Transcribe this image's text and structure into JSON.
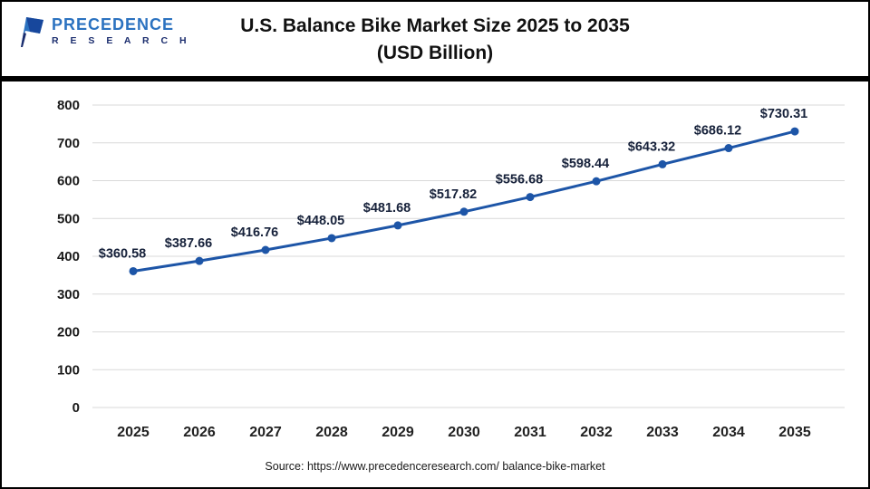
{
  "header": {
    "brand_line1": "PRECEDENCE",
    "brand_line2": "R E S E A R C H",
    "title_line1": "U.S. Balance Bike Market Size 2025 to 2035",
    "title_line2": "(USD Billion)"
  },
  "chart_data": {
    "type": "line",
    "title": "U.S. Balance Bike Market Size 2025 to 2035 (USD Billion)",
    "categories": [
      "2025",
      "2026",
      "2027",
      "2028",
      "2029",
      "2030",
      "2031",
      "2032",
      "2033",
      "2034",
      "2035"
    ],
    "values": [
      360.58,
      387.66,
      416.76,
      448.05,
      481.68,
      517.82,
      556.68,
      598.44,
      643.32,
      686.12,
      730.31
    ],
    "point_labels": [
      "$360.58",
      "$387.66",
      "$416.76",
      "$448.05",
      "$481.68",
      "$517.82",
      "$556.68",
      "$598.44",
      "$643.32",
      "$686.12",
      "$730.31"
    ],
    "ylim": [
      0,
      800
    ],
    "ytick_interval": 100,
    "grid": true,
    "legend": "none",
    "line_color": "#1d55a7",
    "marker_color": "#1d55a7",
    "label_color": "#16213a",
    "axis_label_color": "#1a1a1a",
    "gridline_color": "#d9d9d9"
  },
  "footer": {
    "source": "Source: https://www.precedenceresearch.com/ balance-bike-market"
  }
}
